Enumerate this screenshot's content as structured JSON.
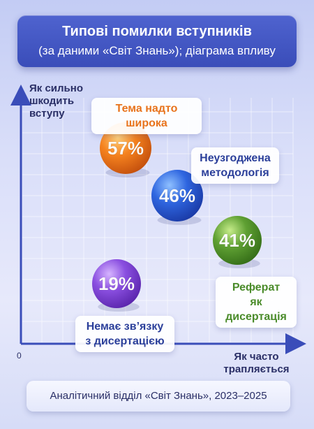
{
  "header": {
    "title": "Типові помилки вступників",
    "subtitle": "(за даними «Світ Знань»); діаграма впливу"
  },
  "chart_data": {
    "type": "scatter",
    "title": "Типові помилки вступників",
    "subtitle": "(за даними «Світ Знань»); діаграма впливу",
    "xlabel": "Як часто трапляється",
    "ylabel": "Як сильно шкодить вступу",
    "origin_label": "0",
    "points": [
      {
        "label": "Тема надто широка",
        "value_label": "57%",
        "value": 57,
        "color": "#f07a1f",
        "text_color": "#e8731c"
      },
      {
        "label": "Неузгоджена методологія",
        "value_label": "46%",
        "value": 46,
        "color": "#2f66e0",
        "text_color": "#2b3f9a"
      },
      {
        "label": "Реферат як дисертація",
        "value_label": "41%",
        "value": 41,
        "color": "#5fa033",
        "text_color": "#4a8b2a"
      },
      {
        "label": "Немає зв’язку з дисертацією",
        "value_label": "19%",
        "value": 19,
        "color": "#8a4fe0",
        "text_color": "#2b3f9a"
      }
    ],
    "grid": true
  },
  "footer": {
    "source": "Аналітичний відділ «Світ Знань», 2023–2025"
  }
}
